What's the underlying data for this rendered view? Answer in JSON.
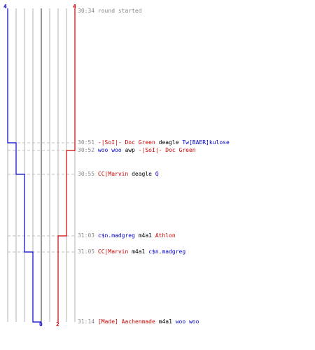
{
  "graph": {
    "colors": {
      "team_blue": "#0000cc",
      "team_red": "#cc0000",
      "grid": "#b0b0b0",
      "center": "#777777",
      "dash": "#c0c0c0"
    },
    "start_scores": {
      "blue": "4",
      "red": "4"
    },
    "final_scores": {
      "blue": "0",
      "red": "2"
    }
  },
  "events": [
    {
      "time": "30:34",
      "parts": [
        {
          "text": "round started",
          "color": "gray"
        }
      ]
    },
    {
      "time": "30:51",
      "parts": [
        {
          "text": "-|SoI|- Doc Green",
          "color": "red"
        },
        {
          "text": " deagle ",
          "color": "black"
        },
        {
          "text": "Tw[BAER]kulose",
          "color": "blue"
        }
      ]
    },
    {
      "time": "30:52",
      "parts": [
        {
          "text": "woo woo",
          "color": "blue"
        },
        {
          "text": " awp ",
          "color": "black"
        },
        {
          "text": "-|SoI|- Doc Green",
          "color": "red"
        }
      ]
    },
    {
      "time": "30:55",
      "parts": [
        {
          "text": "CC|Marvin",
          "color": "red"
        },
        {
          "text": " deagle ",
          "color": "black"
        },
        {
          "text": "Q",
          "color": "blue"
        }
      ]
    },
    {
      "time": "31:03",
      "parts": [
        {
          "text": "c$n.madgreg",
          "color": "blue"
        },
        {
          "text": " m4a1 ",
          "color": "black"
        },
        {
          "text": "Athlon",
          "color": "red"
        }
      ]
    },
    {
      "time": "31:05",
      "parts": [
        {
          "text": "CC|Marvin",
          "color": "red"
        },
        {
          "text": " m4a1 ",
          "color": "black"
        },
        {
          "text": "c$n.madgreg",
          "color": "blue"
        }
      ]
    },
    {
      "time": "31:14",
      "parts": [
        {
          "text": "[Made] Aachenmade",
          "color": "red"
        },
        {
          "text": " m4a1 ",
          "color": "black"
        },
        {
          "text": "woo woo",
          "color": "blue"
        }
      ]
    }
  ]
}
